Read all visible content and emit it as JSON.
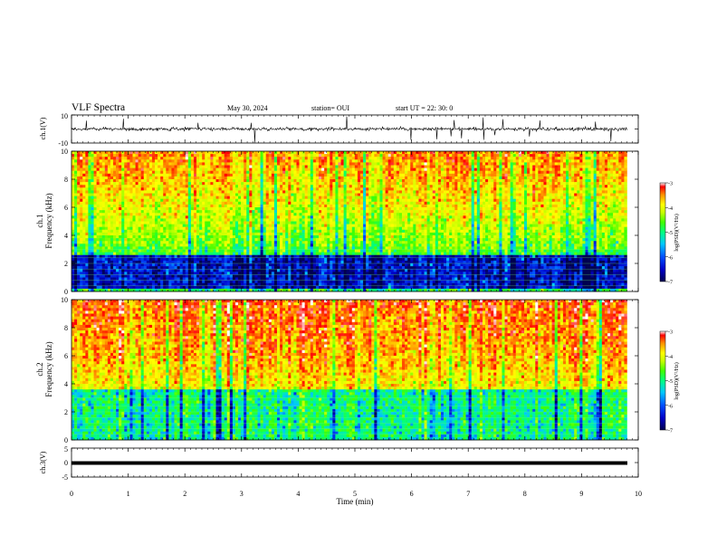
{
  "header": {
    "title": "VLF Spectra",
    "date": "May 30, 2024",
    "station": "station= OUI",
    "start": "start UT =  22: 30: 0"
  },
  "chart_data": [
    {
      "type": "line",
      "ylabel": "ch.1(V)",
      "ylim": [
        -10,
        10
      ],
      "yticks": [
        "10",
        "-10"
      ],
      "xlim": [
        0,
        10
      ],
      "series": [
        {
          "description_free": true,
          "baseline": 0,
          "noise_amplitude": 1,
          "color": "#000000"
        }
      ]
    },
    {
      "type": "heatmap",
      "ylabel_lines": [
        "ch.1",
        "Frequency (kHz)"
      ],
      "ylim": [
        0,
        10
      ],
      "yticks": [
        "0",
        "2",
        "4",
        "6",
        "8",
        "10"
      ],
      "xlim": [
        0,
        10
      ],
      "colorbar": {
        "label": "log(PSD)(V²/Hz)",
        "range": [
          -7,
          -3
        ],
        "ticks": [
          "-3",
          "-4",
          "-5",
          "-6",
          "-7"
        ]
      },
      "profile": {
        "low_band_khz": [
          0.3,
          2.5
        ],
        "low_band_level": -6.6,
        "mid_level": -5.3,
        "high_level": -3.8
      }
    },
    {
      "type": "heatmap",
      "ylabel_lines": [
        "ch.2",
        "Frequency (kHz)"
      ],
      "ylim": [
        0,
        10
      ],
      "yticks": [
        "0",
        "2",
        "4",
        "6",
        "8",
        "10"
      ],
      "xlim": [
        0,
        10
      ],
      "colorbar": {
        "label": "log(PSD)(V²/Hz)",
        "range": [
          -7,
          -3
        ],
        "ticks": [
          "-3",
          "-4",
          "-5",
          "-6",
          "-7"
        ]
      },
      "profile": {
        "low_band_khz": [
          0.0,
          3.5
        ],
        "low_band_level": -5.4,
        "mid_level": -4.4,
        "high_level": -3.6
      }
    },
    {
      "type": "line",
      "ylabel": "ch.3(V)",
      "ylim": [
        -5,
        5
      ],
      "yticks": [
        "5",
        "0",
        "-5"
      ],
      "xlim": [
        0,
        10
      ],
      "series": [
        {
          "constant_value": 0,
          "color": "#000000"
        }
      ]
    }
  ],
  "xaxis": {
    "label": "Time (min)",
    "ticks": [
      "0",
      "1",
      "2",
      "3",
      "4",
      "5",
      "6",
      "7",
      "8",
      "9",
      "10"
    ],
    "data_end_min": 9.8
  },
  "colors": {
    "colormap": [
      "#000050",
      "#0000c8",
      "#0050ff",
      "#00c8ff",
      "#00ff80",
      "#40ff00",
      "#c8ff00",
      "#ffff00",
      "#ff9000",
      "#ff0000",
      "#ffffff"
    ]
  }
}
